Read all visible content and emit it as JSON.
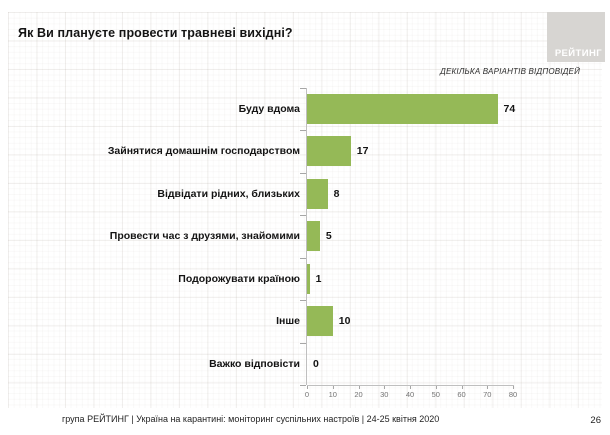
{
  "slide": {
    "title": "Як Ви плануєте провести травневі вихідні?",
    "note": "ДЕКІЛЬКА ВАРІАНТІВ ВІДПОВІДЕЙ",
    "logo_text": "РЕЙТИНГ",
    "footer": "група РЕЙТИНГ | Україна на карантині: моніторинг суспільних настроїв  | 24-25 квітня  2020",
    "page_number": "26"
  },
  "colors": {
    "bar": "#95b957",
    "logo_bg": "#d7d5d2",
    "axis": "#bfbfbf",
    "tick": "#a6a6a6"
  },
  "chart_data": {
    "type": "bar",
    "orientation": "horizontal",
    "title": "Як Ви плануєте провести травневі вихідні?",
    "categories": [
      "Буду вдома",
      "Зайнятися домашнім господарством",
      "Відвідати рідних, близьких",
      "Провести час з друзями, знайомими",
      "Подорожувати країною",
      "Інше",
      "Важко відповісти"
    ],
    "values": [
      74,
      17,
      8,
      5,
      1,
      10,
      0
    ],
    "xlabel": "",
    "ylabel": "",
    "xlim": [
      0,
      80
    ],
    "xticks": [
      0,
      10,
      20,
      30,
      40,
      50,
      60,
      70,
      80
    ],
    "grid": false,
    "legend": "none",
    "data_labels": true
  }
}
